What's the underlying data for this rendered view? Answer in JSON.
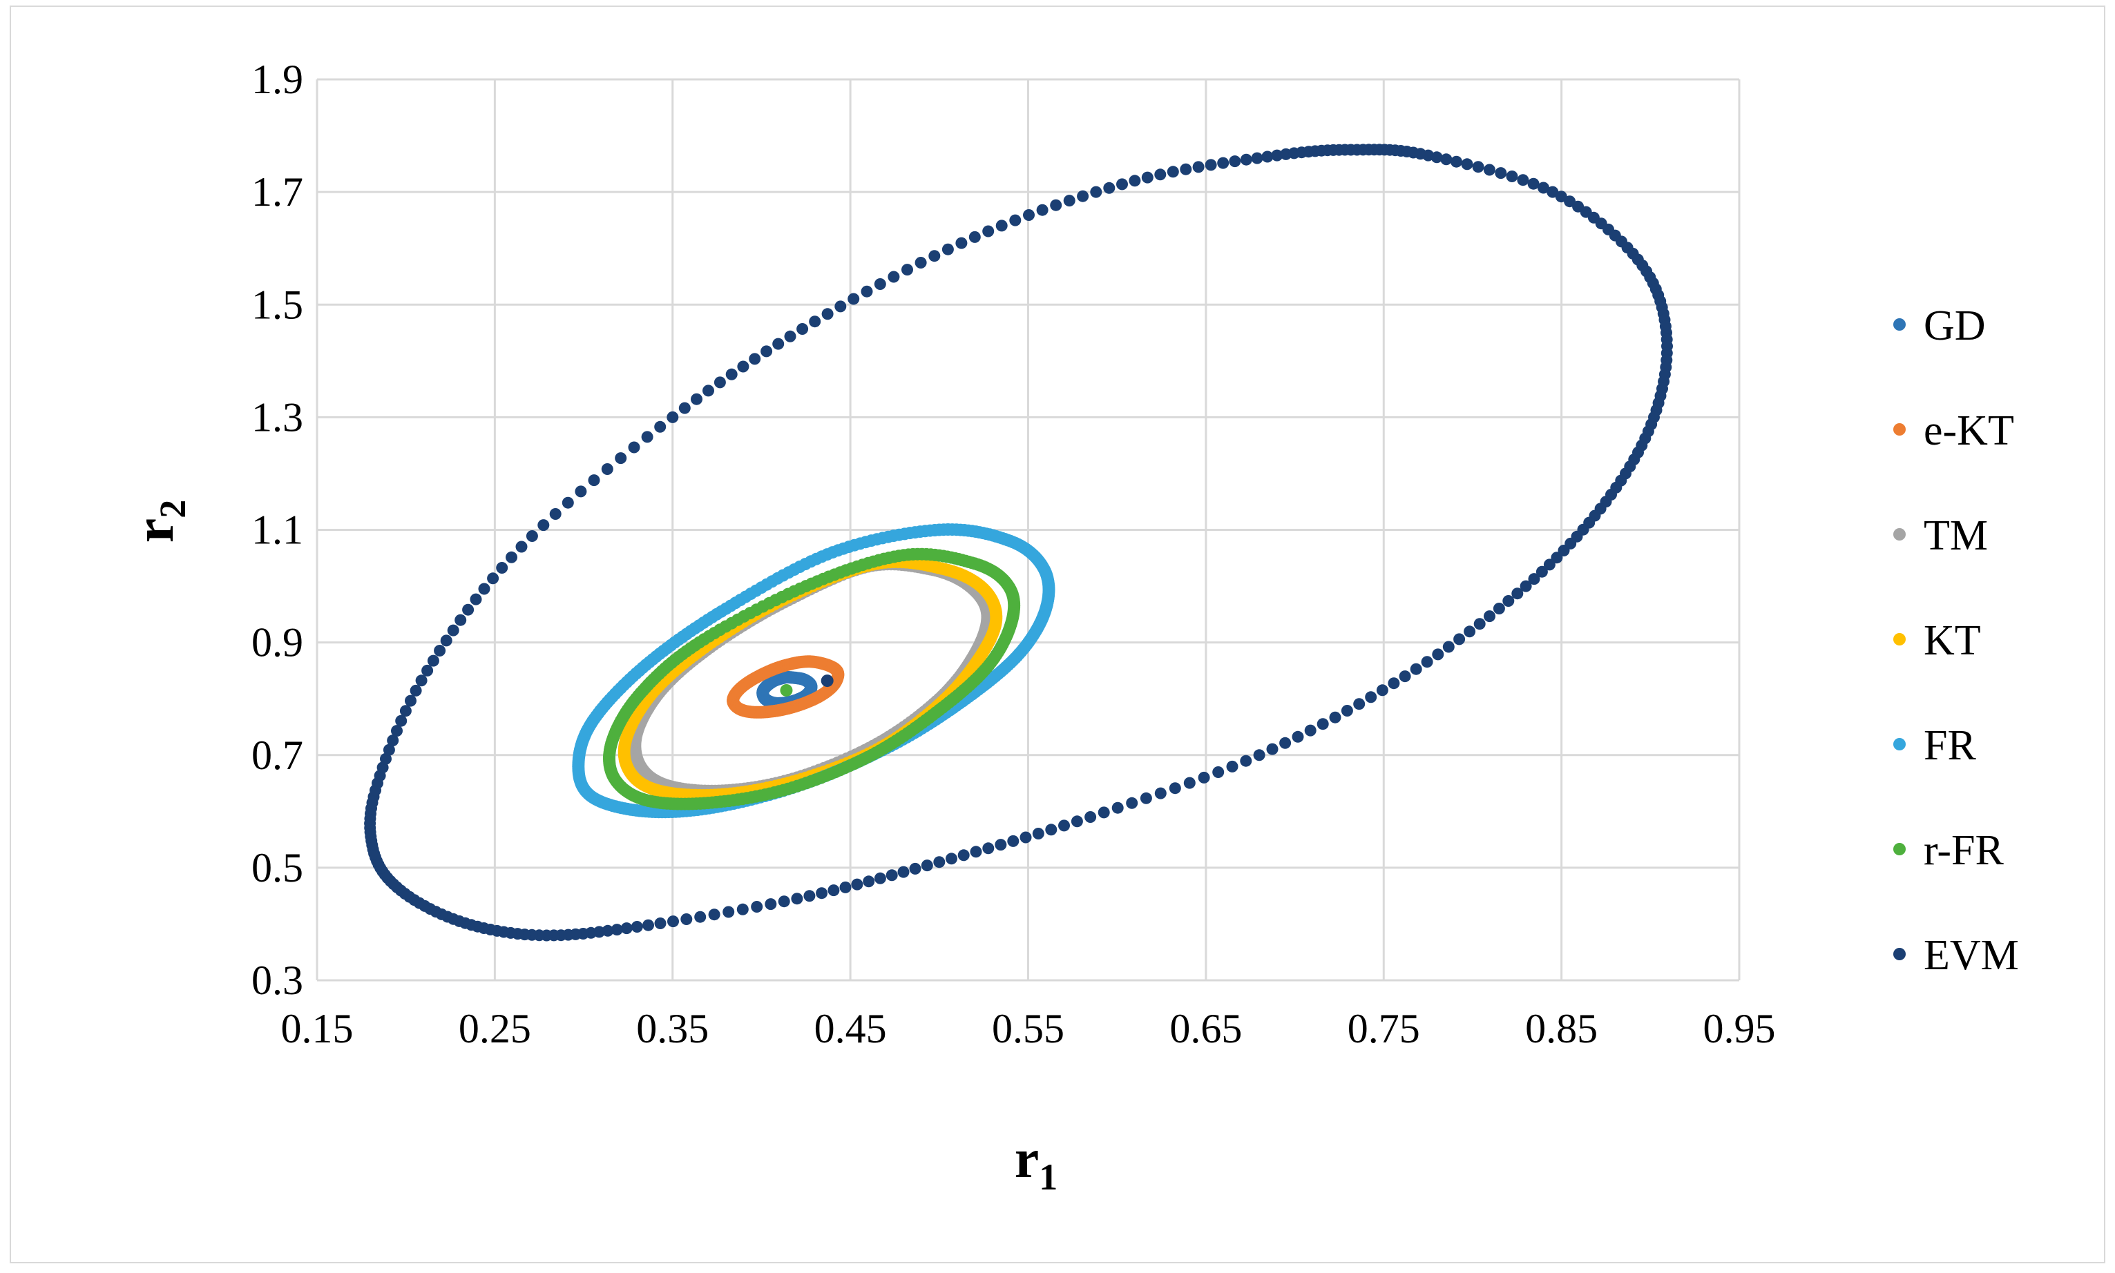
{
  "chart_data": {
    "type": "scatter",
    "xlabel": "r",
    "xlabel_subscript": "1",
    "ylabel": "r",
    "ylabel_subscript": "2",
    "xlim": [
      0.15,
      0.95
    ],
    "ylim": [
      0.3,
      1.9
    ],
    "x_ticks": [
      "0.15",
      "0.25",
      "0.35",
      "0.45",
      "0.55",
      "0.65",
      "0.75",
      "0.85",
      "0.95"
    ],
    "y_ticks": [
      "0.3",
      "0.5",
      "0.7",
      "0.9",
      "1.1",
      "1.3",
      "1.5",
      "1.7",
      "1.9"
    ],
    "grid": true,
    "legend_position": "right",
    "series": [
      {
        "name": "GD",
        "color": "#2e75b6",
        "points": [
          [
            0.416,
            0.838
          ],
          [
            0.424,
            0.834
          ],
          [
            0.428,
            0.822
          ],
          [
            0.425,
            0.806
          ],
          [
            0.417,
            0.795
          ],
          [
            0.408,
            0.792
          ],
          [
            0.402,
            0.8
          ],
          [
            0.401,
            0.815
          ],
          [
            0.406,
            0.83
          ],
          [
            0.412,
            0.837
          ]
        ]
      },
      {
        "name": "e-KT",
        "color": "#ed7d31",
        "points": [
          [
            0.425,
            0.866
          ],
          [
            0.437,
            0.86
          ],
          [
            0.443,
            0.846
          ],
          [
            0.44,
            0.822
          ],
          [
            0.43,
            0.8
          ],
          [
            0.415,
            0.783
          ],
          [
            0.4,
            0.776
          ],
          [
            0.389,
            0.78
          ],
          [
            0.384,
            0.795
          ],
          [
            0.387,
            0.815
          ],
          [
            0.396,
            0.836
          ],
          [
            0.41,
            0.856
          ]
        ]
      },
      {
        "name": "TM",
        "color": "#a5a5a5",
        "points": [
          [
            0.46,
            1.035
          ],
          [
            0.495,
            1.03
          ],
          [
            0.517,
            1.0
          ],
          [
            0.527,
            0.95
          ],
          [
            0.52,
            0.88
          ],
          [
            0.5,
            0.8
          ],
          [
            0.465,
            0.72
          ],
          [
            0.42,
            0.66
          ],
          [
            0.38,
            0.637
          ],
          [
            0.348,
            0.645
          ],
          [
            0.332,
            0.68
          ],
          [
            0.33,
            0.74
          ],
          [
            0.345,
            0.82
          ],
          [
            0.375,
            0.9
          ],
          [
            0.415,
            0.975
          ]
        ]
      },
      {
        "name": "KT",
        "color": "#ffc000",
        "points": [
          [
            0.465,
            1.04
          ],
          [
            0.503,
            1.03
          ],
          [
            0.525,
            0.995
          ],
          [
            0.532,
            0.94
          ],
          [
            0.522,
            0.87
          ],
          [
            0.5,
            0.79
          ],
          [
            0.465,
            0.71
          ],
          [
            0.42,
            0.655
          ],
          [
            0.378,
            0.63
          ],
          [
            0.343,
            0.636
          ],
          [
            0.326,
            0.67
          ],
          [
            0.324,
            0.73
          ],
          [
            0.34,
            0.815
          ],
          [
            0.372,
            0.9
          ],
          [
            0.415,
            0.98
          ]
        ]
      },
      {
        "name": "FR",
        "color": "#35a6dd",
        "points": [
          [
            0.5,
            1.1
          ],
          [
            0.54,
            1.08
          ],
          [
            0.559,
            1.03
          ],
          [
            0.56,
            0.96
          ],
          [
            0.545,
            0.88
          ],
          [
            0.515,
            0.8
          ],
          [
            0.475,
            0.72
          ],
          [
            0.425,
            0.65
          ],
          [
            0.375,
            0.608
          ],
          [
            0.335,
            0.6
          ],
          [
            0.305,
            0.625
          ],
          [
            0.297,
            0.68
          ],
          [
            0.305,
            0.76
          ],
          [
            0.335,
            0.86
          ],
          [
            0.38,
            0.96
          ],
          [
            0.44,
            1.06
          ]
        ]
      },
      {
        "name": "r-FR",
        "color": "#4eb03d",
        "points": [
          [
            0.48,
            1.055
          ],
          [
            0.52,
            1.04
          ],
          [
            0.539,
            1.0
          ],
          [
            0.541,
            0.94
          ],
          [
            0.528,
            0.86
          ],
          [
            0.5,
            0.78
          ],
          [
            0.462,
            0.7
          ],
          [
            0.415,
            0.64
          ],
          [
            0.37,
            0.615
          ],
          [
            0.335,
            0.62
          ],
          [
            0.317,
            0.66
          ],
          [
            0.316,
            0.725
          ],
          [
            0.332,
            0.81
          ],
          [
            0.365,
            0.9
          ],
          [
            0.425,
            1.0
          ]
        ]
      },
      {
        "name": "EVM",
        "color": "#1b3f73",
        "points": [
          [
            0.775,
            1.765
          ],
          [
            0.845,
            1.7
          ],
          [
            0.893,
            1.58
          ],
          [
            0.909,
            1.45
          ],
          [
            0.902,
            1.3
          ],
          [
            0.875,
            1.15
          ],
          [
            0.83,
            1.0
          ],
          [
            0.762,
            0.84
          ],
          [
            0.68,
            0.7
          ],
          [
            0.585,
            0.59
          ],
          [
            0.5,
            0.51
          ],
          [
            0.42,
            0.445
          ],
          [
            0.33,
            0.395
          ],
          [
            0.275,
            0.38
          ],
          [
            0.23,
            0.405
          ],
          [
            0.195,
            0.465
          ],
          [
            0.181,
            0.54
          ],
          [
            0.184,
            0.65
          ],
          [
            0.212,
            0.85
          ],
          [
            0.265,
            1.07
          ],
          [
            0.35,
            1.3
          ],
          [
            0.43,
            1.47
          ],
          [
            0.52,
            1.62
          ],
          [
            0.61,
            1.72
          ],
          [
            0.69,
            1.765
          ],
          [
            0.735,
            1.775
          ]
        ]
      }
    ],
    "extra_points": [
      {
        "series": "EVM",
        "x": 0.437,
        "y": 0.832
      },
      {
        "series": "r-FR",
        "x": 0.414,
        "y": 0.815
      }
    ]
  }
}
